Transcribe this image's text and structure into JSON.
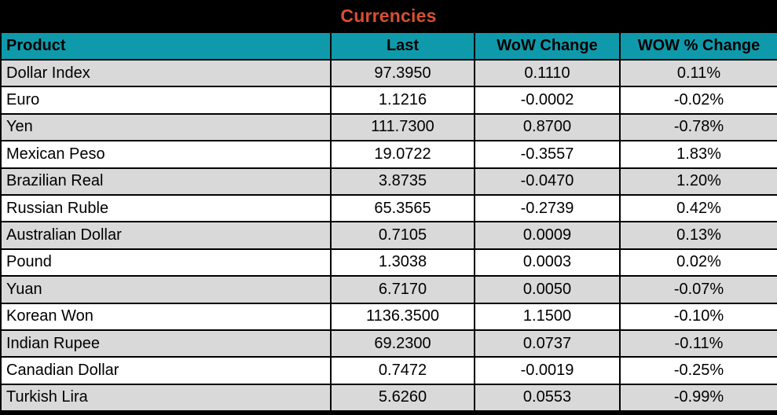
{
  "colors": {
    "frame_bg": "#000000",
    "title_color": "#D8502F",
    "header_bg": "#0F9AAB",
    "row_bg": "#FFFFFF",
    "row_alt_bg": "#D9D9D9"
  },
  "chart_data": {
    "type": "table",
    "title": "Currencies",
    "columns": [
      "Product",
      "Last",
      "WoW Change",
      "WOW % Change"
    ],
    "rows": [
      [
        "Dollar Index",
        "97.3950",
        "0.1110",
        "0.11%"
      ],
      [
        "Euro",
        "1.1216",
        "-0.0002",
        "-0.02%"
      ],
      [
        "Yen",
        "111.7300",
        "0.8700",
        "-0.78%"
      ],
      [
        "Mexican Peso",
        "19.0722",
        "-0.3557",
        "1.83%"
      ],
      [
        "Brazilian Real",
        "3.8735",
        "-0.0470",
        "1.20%"
      ],
      [
        "Russian Ruble",
        "65.3565",
        "-0.2739",
        "0.42%"
      ],
      [
        "Australian Dollar",
        "0.7105",
        "0.0009",
        "0.13%"
      ],
      [
        "Pound",
        "1.3038",
        "0.0003",
        "0.02%"
      ],
      [
        "Yuan",
        "6.7170",
        "0.0050",
        "-0.07%"
      ],
      [
        "Korean Won",
        "1136.3500",
        "1.1500",
        "-0.10%"
      ],
      [
        "Indian Rupee",
        "69.2300",
        "0.0737",
        "-0.11%"
      ],
      [
        "Canadian Dollar",
        "0.7472",
        "-0.0019",
        "-0.25%"
      ],
      [
        "Turkish Lira",
        "5.6260",
        "0.0553",
        "-0.99%"
      ]
    ]
  }
}
